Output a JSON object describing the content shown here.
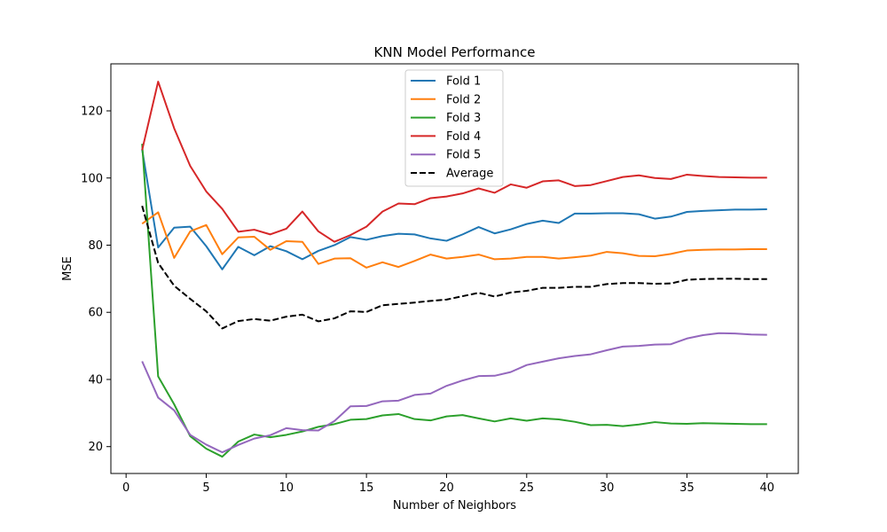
{
  "chart_data": {
    "type": "line",
    "title": "KNN Model Performance",
    "xlabel": "Number of Neighbors",
    "ylabel": "MSE",
    "xlim": [
      -0.95,
      41.95
    ],
    "ylim": [
      12,
      134
    ],
    "xticks": [
      0,
      5,
      10,
      15,
      20,
      25,
      30,
      35,
      40
    ],
    "yticks": [
      20,
      40,
      60,
      80,
      100,
      120
    ],
    "grid": false,
    "legend_position": "top-center",
    "x": [
      1,
      2,
      3,
      4,
      5,
      6,
      7,
      8,
      9,
      10,
      11,
      12,
      13,
      14,
      15,
      16,
      17,
      18,
      19,
      20,
      21,
      22,
      23,
      24,
      25,
      26,
      27,
      28,
      29,
      30,
      31,
      32,
      33,
      34,
      35,
      36,
      37,
      38,
      39,
      40
    ],
    "series": [
      {
        "name": "Fold 1",
        "color": "#1f77b4",
        "dash": "solid",
        "values": [
          108.5,
          79.3,
          85.2,
          85.5,
          79.7,
          72.8,
          79.5,
          77.0,
          79.7,
          78.2,
          75.8,
          78.3,
          80.0,
          82.4,
          81.6,
          82.7,
          83.4,
          83.2,
          82.0,
          81.3,
          83.2,
          85.4,
          83.5,
          84.7,
          86.3,
          87.3,
          86.6,
          89.4,
          89.4,
          89.5,
          89.5,
          89.2,
          87.9,
          88.5,
          89.9,
          90.2,
          90.4,
          90.6,
          90.6,
          90.7
        ]
      },
      {
        "name": "Fold 2",
        "color": "#ff7f0e",
        "dash": "solid",
        "values": [
          86.4,
          89.8,
          76.2,
          84.1,
          86.0,
          77.3,
          82.3,
          82.5,
          78.6,
          81.2,
          81.0,
          74.4,
          76.0,
          76.1,
          73.3,
          74.9,
          73.5,
          75.3,
          77.2,
          76.0,
          76.5,
          77.2,
          75.8,
          76.0,
          76.5,
          76.5,
          76.0,
          76.4,
          76.9,
          78.0,
          77.6,
          76.8,
          76.7,
          77.4,
          78.4,
          78.6,
          78.7,
          78.7,
          78.8,
          78.8
        ]
      },
      {
        "name": "Fold 3",
        "color": "#2ca02c",
        "dash": "solid",
        "values": [
          110.2,
          40.9,
          32.6,
          23.1,
          19.4,
          17.0,
          21.5,
          23.6,
          22.8,
          23.5,
          24.5,
          25.9,
          26.7,
          28.0,
          28.2,
          29.3,
          29.7,
          28.2,
          27.8,
          29.0,
          29.4,
          28.4,
          27.5,
          28.4,
          27.7,
          28.4,
          28.1,
          27.4,
          26.4,
          26.5,
          26.1,
          26.6,
          27.3,
          26.9,
          26.8,
          27.0,
          26.9,
          26.8,
          26.7,
          26.7
        ]
      },
      {
        "name": "Fold 4",
        "color": "#d62728",
        "dash": "solid",
        "values": [
          108.3,
          128.7,
          114.8,
          103.6,
          96.0,
          90.8,
          84.0,
          84.6,
          83.2,
          84.9,
          90.0,
          84.1,
          81.0,
          83.0,
          85.5,
          90.0,
          92.4,
          92.2,
          94.0,
          94.5,
          95.4,
          96.9,
          95.6,
          98.1,
          97.1,
          99.0,
          99.3,
          97.6,
          97.9,
          99.1,
          100.3,
          100.8,
          100.0,
          99.7,
          101.0,
          100.6,
          100.3,
          100.2,
          100.1,
          100.1
        ]
      },
      {
        "name": "Fold 5",
        "color": "#9467bd",
        "dash": "solid",
        "values": [
          45.4,
          34.6,
          30.8,
          23.5,
          20.6,
          18.3,
          20.5,
          22.4,
          23.4,
          25.5,
          24.9,
          24.8,
          27.6,
          32.0,
          32.1,
          33.5,
          33.7,
          35.4,
          35.8,
          38.1,
          39.7,
          41.0,
          41.1,
          42.2,
          44.3,
          45.3,
          46.3,
          47.0,
          47.5,
          48.7,
          49.8,
          50.0,
          50.4,
          50.5,
          52.2,
          53.2,
          53.8,
          53.7,
          53.4,
          53.3
        ]
      },
      {
        "name": "Average",
        "color": "#000000",
        "dash": "dashed",
        "values": [
          91.7,
          74.7,
          67.9,
          64.0,
          60.3,
          55.2,
          57.4,
          58.0,
          57.5,
          58.7,
          59.3,
          57.3,
          58.2,
          60.3,
          60.1,
          62.1,
          62.5,
          62.9,
          63.4,
          63.8,
          64.8,
          65.8,
          64.7,
          65.9,
          66.4,
          67.3,
          67.3,
          67.6,
          67.6,
          68.4,
          68.7,
          68.7,
          68.5,
          68.6,
          69.7,
          69.9,
          70.0,
          70.0,
          69.9,
          69.9
        ]
      }
    ]
  }
}
